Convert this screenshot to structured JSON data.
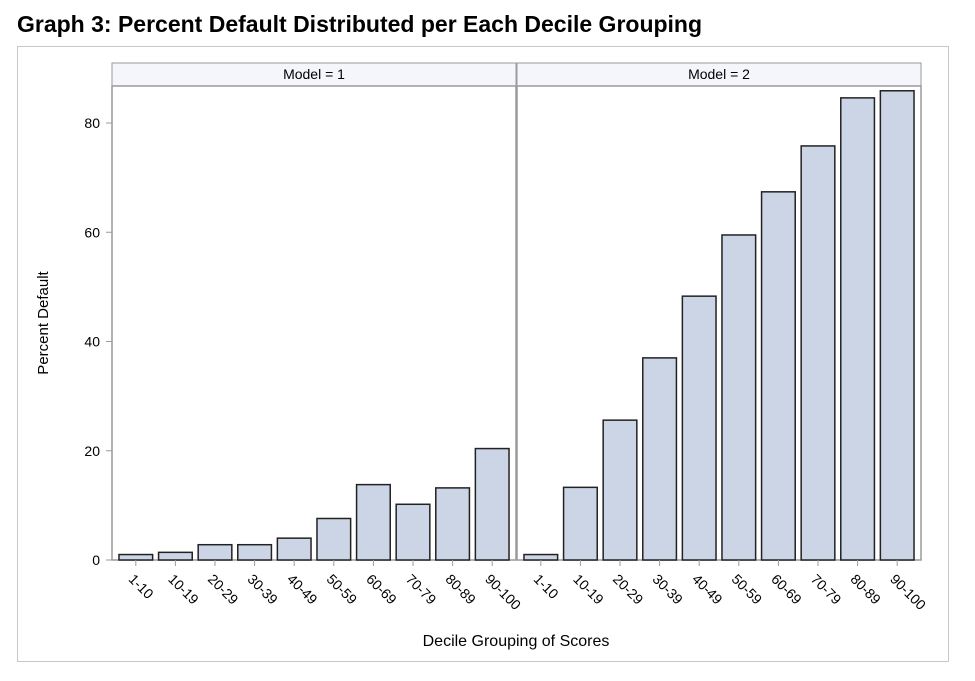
{
  "chart_data": {
    "type": "bar",
    "title": "Graph 3: Percent Default Distributed per Each Decile Grouping",
    "xlabel": "Decile Grouping of Scores",
    "ylabel": "Percent Default",
    "ylim": [
      0,
      87
    ],
    "yticks": [
      0,
      20,
      40,
      60,
      80
    ],
    "categories": [
      "1-10",
      "10-19",
      "20-29",
      "30-39",
      "40-49",
      "50-59",
      "60-69",
      "70-79",
      "80-89",
      "90-100"
    ],
    "panels": [
      {
        "label": "Model = 1",
        "values": [
          1.0,
          1.4,
          2.8,
          2.8,
          4.0,
          7.6,
          13.8,
          10.2,
          13.2,
          20.4
        ]
      },
      {
        "label": "Model = 2",
        "values": [
          1.0,
          13.3,
          25.6,
          37.0,
          48.3,
          59.5,
          67.4,
          75.8,
          84.6,
          85.9
        ]
      }
    ],
    "colors": {
      "bar_fill": "#cbd5e5",
      "bar_stroke": "#222222",
      "axis": "#9a9a9a",
      "header_fill": "#f4f6fb"
    },
    "grid": false
  }
}
